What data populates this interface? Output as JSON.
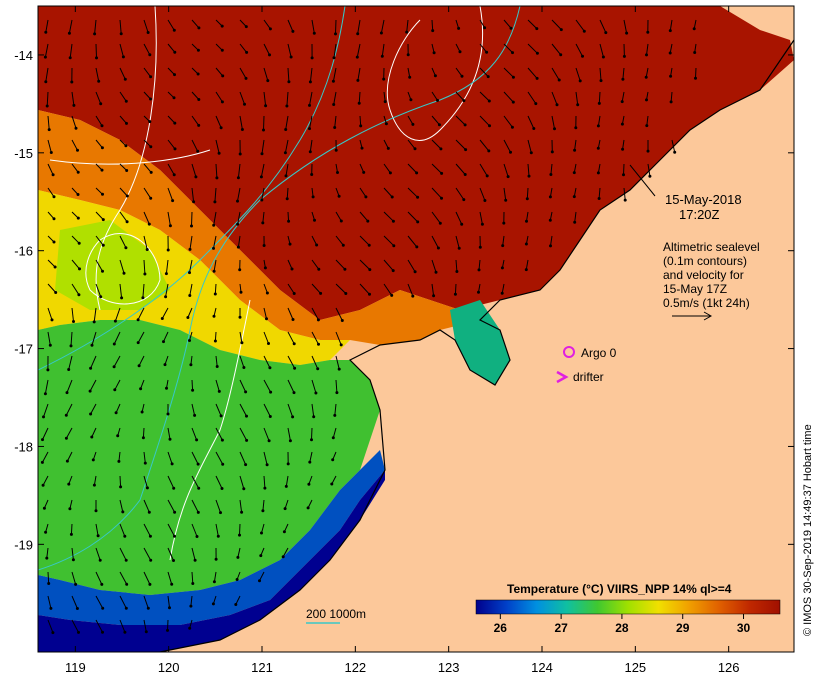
{
  "map": {
    "lon_range": [
      118.6,
      126.7
    ],
    "lat_range": [
      -20.1,
      -13.5
    ],
    "x_ticks": [
      "119",
      "120",
      "121",
      "122",
      "123",
      "124",
      "125",
      "126"
    ],
    "y_ticks": [
      "-14",
      "-15",
      "-16",
      "-17",
      "-18",
      "-19"
    ],
    "land_color": "#fcc89a",
    "ocean_colors": {
      "dark_red": "#a81400",
      "red": "#c83200",
      "orange": "#e87800",
      "light_orange": "#f0a000",
      "yellow": "#f0d800",
      "yellow_green": "#b0e000",
      "green": "#40c030",
      "teal": "#10b080",
      "blue": "#0050c0",
      "dark_blue": "#000090"
    }
  },
  "annotations": {
    "date": "15-May-2018",
    "time": "17:20Z",
    "altimetric_lines": [
      "Altimetric sealevel",
      "(0.1m contours)",
      "and velocity for",
      "15-May 17Z",
      "0.5m/s (1kt 24h)"
    ],
    "argo_label": "Argo 0",
    "drifter_label": "drifter",
    "depth_label": "200  1000m"
  },
  "colorbar": {
    "title": "Temperature (°C) VIIRS_NPP 14% ql>=4",
    "ticks": [
      "26",
      "27",
      "28",
      "29",
      "30"
    ],
    "range": [
      25.6,
      30.6
    ],
    "colors": [
      "#00008c",
      "#0040c8",
      "#0090e0",
      "#10c0a0",
      "#40c830",
      "#a0e000",
      "#f0e000",
      "#f0a000",
      "#e06000",
      "#c02800",
      "#a01000"
    ]
  },
  "credit": "© IMOS 30-Sep-2019 14:49:37 Hobart time"
}
